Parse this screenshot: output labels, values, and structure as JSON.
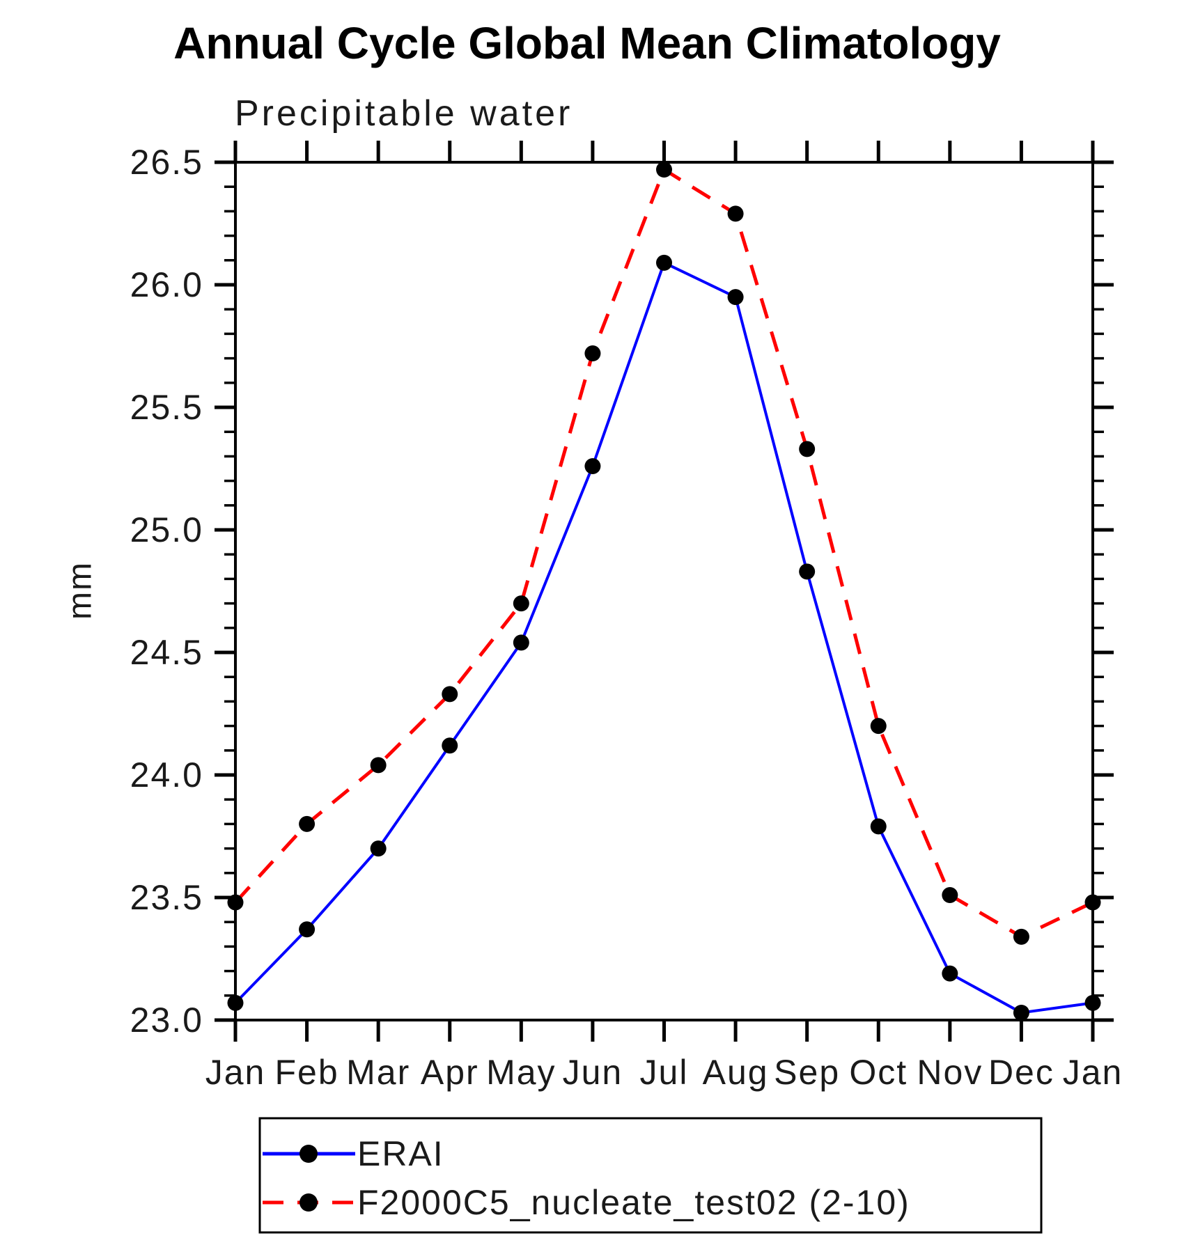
{
  "chart_data": {
    "type": "line",
    "title": "Annual Cycle Global Mean Climatology",
    "subtitle": "Precipitable water",
    "ylabel": "mm",
    "xlabel": "",
    "categories": [
      "Jan",
      "Feb",
      "Mar",
      "Apr",
      "May",
      "Jun",
      "Jul",
      "Aug",
      "Sep",
      "Oct",
      "Nov",
      "Dec",
      "Jan"
    ],
    "series": [
      {
        "name": "ERAI",
        "color": "#0000ff",
        "line_style": "solid",
        "marker": "filled-circle",
        "marker_color": "#000000",
        "values": [
          23.07,
          23.37,
          23.7,
          24.12,
          24.54,
          25.26,
          26.09,
          25.95,
          24.83,
          23.79,
          23.19,
          23.03,
          23.07
        ]
      },
      {
        "name": "F2000C5_nucleate_test02 (2-10)",
        "color": "#ff0000",
        "line_style": "dashed",
        "marker": "filled-circle",
        "marker_color": "#000000",
        "values": [
          23.48,
          23.8,
          24.04,
          24.33,
          24.7,
          25.72,
          26.47,
          26.29,
          25.33,
          24.2,
          23.51,
          23.34,
          23.48
        ]
      }
    ],
    "ylim": [
      23.0,
      26.5
    ],
    "ytick_labels": [
      "26.5",
      "26.0",
      "25.5",
      "25.0",
      "24.5",
      "24.0",
      "23.5",
      "23.0"
    ],
    "ytick_step": 0.5,
    "yminor_step": 0.1,
    "grid": false,
    "legend_position": "bottom-left-box",
    "axis_color": "#000000",
    "unit": "mm"
  }
}
